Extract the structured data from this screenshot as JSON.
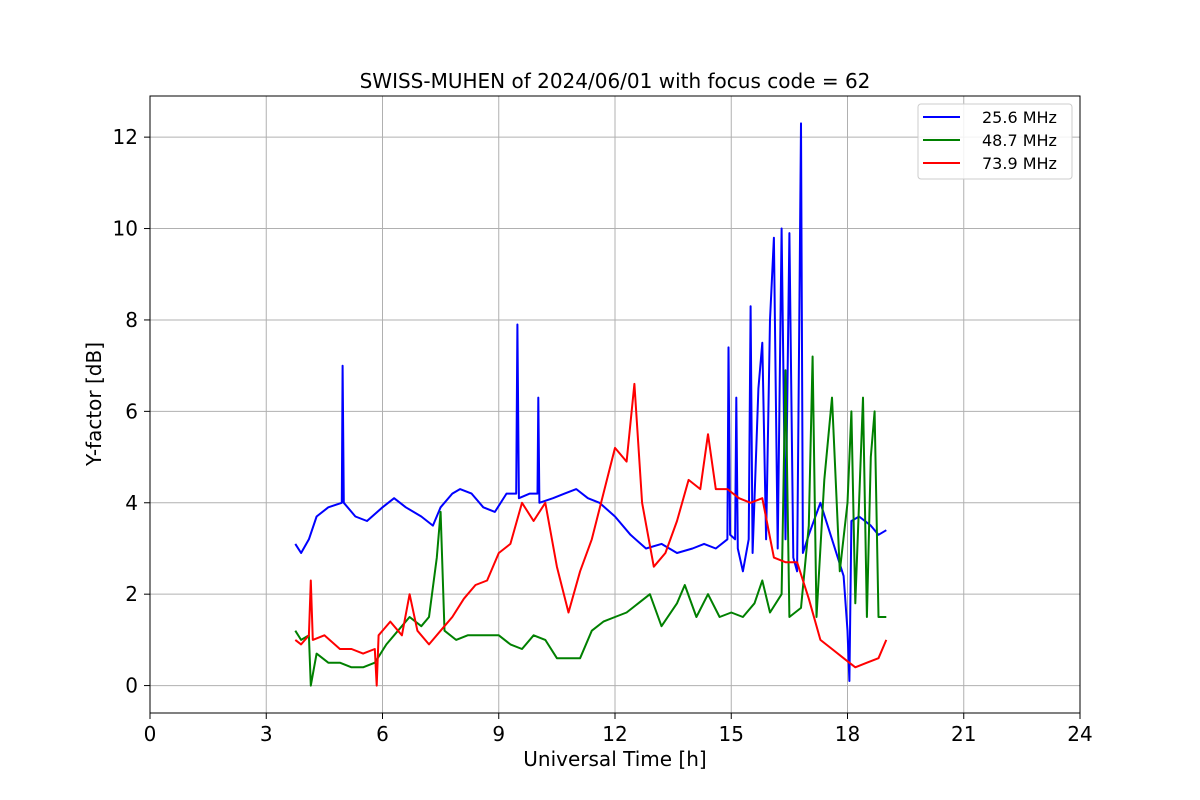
{
  "chart_data": {
    "type": "line",
    "title": "SWISS-MUHEN of 2024/06/01 with focus code = 62",
    "xlabel": "Universal Time [h]",
    "ylabel": "Y-factor [dB]",
    "xlim": [
      0,
      24
    ],
    "ylim": [
      -0.6,
      12.9
    ],
    "xticks": [
      0,
      3,
      6,
      9,
      12,
      15,
      18,
      21,
      24
    ],
    "yticks": [
      0,
      2,
      4,
      6,
      8,
      10,
      12
    ],
    "grid": true,
    "legend_position": "top-right",
    "series": [
      {
        "name": "25.6 MHz",
        "color": "#0000ff",
        "points": [
          [
            3.75,
            3.1
          ],
          [
            3.9,
            2.9
          ],
          [
            4.1,
            3.2
          ],
          [
            4.3,
            3.7
          ],
          [
            4.6,
            3.9
          ],
          [
            4.95,
            4.0
          ],
          [
            4.97,
            7.0
          ],
          [
            5.0,
            4.0
          ],
          [
            5.3,
            3.7
          ],
          [
            5.6,
            3.6
          ],
          [
            6.0,
            3.9
          ],
          [
            6.3,
            4.1
          ],
          [
            6.6,
            3.9
          ],
          [
            7.0,
            3.7
          ],
          [
            7.3,
            3.5
          ],
          [
            7.5,
            3.9
          ],
          [
            7.8,
            4.2
          ],
          [
            8.0,
            4.3
          ],
          [
            8.3,
            4.2
          ],
          [
            8.6,
            3.9
          ],
          [
            8.9,
            3.8
          ],
          [
            9.2,
            4.2
          ],
          [
            9.45,
            4.2
          ],
          [
            9.48,
            7.9
          ],
          [
            9.52,
            4.1
          ],
          [
            9.8,
            4.2
          ],
          [
            10.0,
            4.2
          ],
          [
            10.02,
            6.3
          ],
          [
            10.05,
            4.0
          ],
          [
            10.4,
            4.1
          ],
          [
            10.7,
            4.2
          ],
          [
            11.0,
            4.3
          ],
          [
            11.3,
            4.1
          ],
          [
            11.6,
            4.0
          ],
          [
            12.0,
            3.7
          ],
          [
            12.4,
            3.3
          ],
          [
            12.8,
            3.0
          ],
          [
            13.2,
            3.1
          ],
          [
            13.6,
            2.9
          ],
          [
            14.0,
            3.0
          ],
          [
            14.3,
            3.1
          ],
          [
            14.6,
            3.0
          ],
          [
            14.9,
            3.2
          ],
          [
            14.93,
            7.4
          ],
          [
            14.97,
            3.3
          ],
          [
            15.1,
            3.2
          ],
          [
            15.13,
            6.3
          ],
          [
            15.17,
            3.0
          ],
          [
            15.3,
            2.5
          ],
          [
            15.45,
            3.2
          ],
          [
            15.5,
            8.3
          ],
          [
            15.55,
            2.9
          ],
          [
            15.7,
            6.5
          ],
          [
            15.8,
            7.5
          ],
          [
            15.9,
            3.2
          ],
          [
            16.0,
            8.0
          ],
          [
            16.1,
            9.8
          ],
          [
            16.2,
            3.0
          ],
          [
            16.3,
            10.0
          ],
          [
            16.4,
            3.2
          ],
          [
            16.5,
            9.9
          ],
          [
            16.6,
            2.8
          ],
          [
            16.7,
            2.5
          ],
          [
            16.8,
            12.3
          ],
          [
            16.85,
            2.9
          ],
          [
            17.0,
            3.3
          ],
          [
            17.3,
            4.0
          ],
          [
            17.6,
            3.2
          ],
          [
            17.9,
            2.4
          ],
          [
            18.0,
            1.2
          ],
          [
            18.05,
            0.1
          ],
          [
            18.1,
            3.6
          ],
          [
            18.3,
            3.7
          ],
          [
            18.6,
            3.5
          ],
          [
            18.8,
            3.3
          ],
          [
            19.0,
            3.4
          ]
        ]
      },
      {
        "name": "48.7 MHz",
        "color": "#008000",
        "points": [
          [
            3.75,
            1.2
          ],
          [
            3.9,
            1.0
          ],
          [
            4.1,
            1.1
          ],
          [
            4.15,
            0.0
          ],
          [
            4.3,
            0.7
          ],
          [
            4.6,
            0.5
          ],
          [
            4.9,
            0.5
          ],
          [
            5.2,
            0.4
          ],
          [
            5.5,
            0.4
          ],
          [
            5.8,
            0.5
          ],
          [
            6.1,
            0.9
          ],
          [
            6.4,
            1.2
          ],
          [
            6.7,
            1.5
          ],
          [
            7.0,
            1.3
          ],
          [
            7.2,
            1.5
          ],
          [
            7.4,
            2.8
          ],
          [
            7.5,
            3.8
          ],
          [
            7.6,
            1.2
          ],
          [
            7.9,
            1.0
          ],
          [
            8.2,
            1.1
          ],
          [
            8.6,
            1.1
          ],
          [
            9.0,
            1.1
          ],
          [
            9.3,
            0.9
          ],
          [
            9.6,
            0.8
          ],
          [
            9.9,
            1.1
          ],
          [
            10.2,
            1.0
          ],
          [
            10.5,
            0.6
          ],
          [
            10.8,
            0.6
          ],
          [
            11.1,
            0.6
          ],
          [
            11.4,
            1.2
          ],
          [
            11.7,
            1.4
          ],
          [
            12.0,
            1.5
          ],
          [
            12.3,
            1.6
          ],
          [
            12.6,
            1.8
          ],
          [
            12.9,
            2.0
          ],
          [
            13.2,
            1.3
          ],
          [
            13.6,
            1.8
          ],
          [
            13.8,
            2.2
          ],
          [
            14.1,
            1.5
          ],
          [
            14.4,
            2.0
          ],
          [
            14.7,
            1.5
          ],
          [
            15.0,
            1.6
          ],
          [
            15.3,
            1.5
          ],
          [
            15.6,
            1.8
          ],
          [
            15.8,
            2.3
          ],
          [
            16.0,
            1.6
          ],
          [
            16.3,
            2.0
          ],
          [
            16.4,
            6.9
          ],
          [
            16.5,
            1.5
          ],
          [
            16.8,
            1.7
          ],
          [
            17.0,
            3.5
          ],
          [
            17.1,
            7.2
          ],
          [
            17.2,
            1.5
          ],
          [
            17.4,
            4.5
          ],
          [
            17.6,
            6.3
          ],
          [
            17.8,
            2.5
          ],
          [
            18.0,
            4.0
          ],
          [
            18.1,
            6.0
          ],
          [
            18.2,
            1.8
          ],
          [
            18.4,
            6.3
          ],
          [
            18.5,
            1.5
          ],
          [
            18.6,
            5.0
          ],
          [
            18.7,
            6.0
          ],
          [
            18.8,
            1.5
          ],
          [
            19.0,
            1.5
          ]
        ]
      },
      {
        "name": "73.9 MHz",
        "color": "#ff0000",
        "points": [
          [
            3.75,
            1.0
          ],
          [
            3.9,
            0.9
          ],
          [
            4.1,
            1.1
          ],
          [
            4.15,
            2.3
          ],
          [
            4.2,
            1.0
          ],
          [
            4.5,
            1.1
          ],
          [
            4.9,
            0.8
          ],
          [
            5.2,
            0.8
          ],
          [
            5.5,
            0.7
          ],
          [
            5.8,
            0.8
          ],
          [
            5.85,
            0.0
          ],
          [
            5.9,
            1.1
          ],
          [
            6.2,
            1.4
          ],
          [
            6.5,
            1.1
          ],
          [
            6.7,
            2.0
          ],
          [
            6.9,
            1.2
          ],
          [
            7.2,
            0.9
          ],
          [
            7.5,
            1.2
          ],
          [
            7.8,
            1.5
          ],
          [
            8.1,
            1.9
          ],
          [
            8.4,
            2.2
          ],
          [
            8.7,
            2.3
          ],
          [
            9.0,
            2.9
          ],
          [
            9.3,
            3.1
          ],
          [
            9.6,
            4.0
          ],
          [
            9.9,
            3.6
          ],
          [
            10.2,
            4.0
          ],
          [
            10.5,
            2.6
          ],
          [
            10.8,
            1.6
          ],
          [
            11.1,
            2.5
          ],
          [
            11.4,
            3.2
          ],
          [
            11.7,
            4.2
          ],
          [
            12.0,
            5.2
          ],
          [
            12.3,
            4.9
          ],
          [
            12.5,
            6.6
          ],
          [
            12.7,
            4.0
          ],
          [
            13.0,
            2.6
          ],
          [
            13.3,
            2.9
          ],
          [
            13.6,
            3.6
          ],
          [
            13.9,
            4.5
          ],
          [
            14.2,
            4.3
          ],
          [
            14.4,
            5.5
          ],
          [
            14.6,
            4.3
          ],
          [
            14.9,
            4.3
          ],
          [
            15.2,
            4.1
          ],
          [
            15.5,
            4.0
          ],
          [
            15.8,
            4.1
          ],
          [
            16.1,
            2.8
          ],
          [
            16.4,
            2.7
          ],
          [
            16.7,
            2.7
          ],
          [
            17.0,
            1.9
          ],
          [
            17.3,
            1.0
          ],
          [
            17.6,
            0.8
          ],
          [
            17.9,
            0.6
          ],
          [
            18.2,
            0.4
          ],
          [
            18.5,
            0.5
          ],
          [
            18.8,
            0.6
          ],
          [
            19.0,
            1.0
          ]
        ]
      }
    ]
  }
}
